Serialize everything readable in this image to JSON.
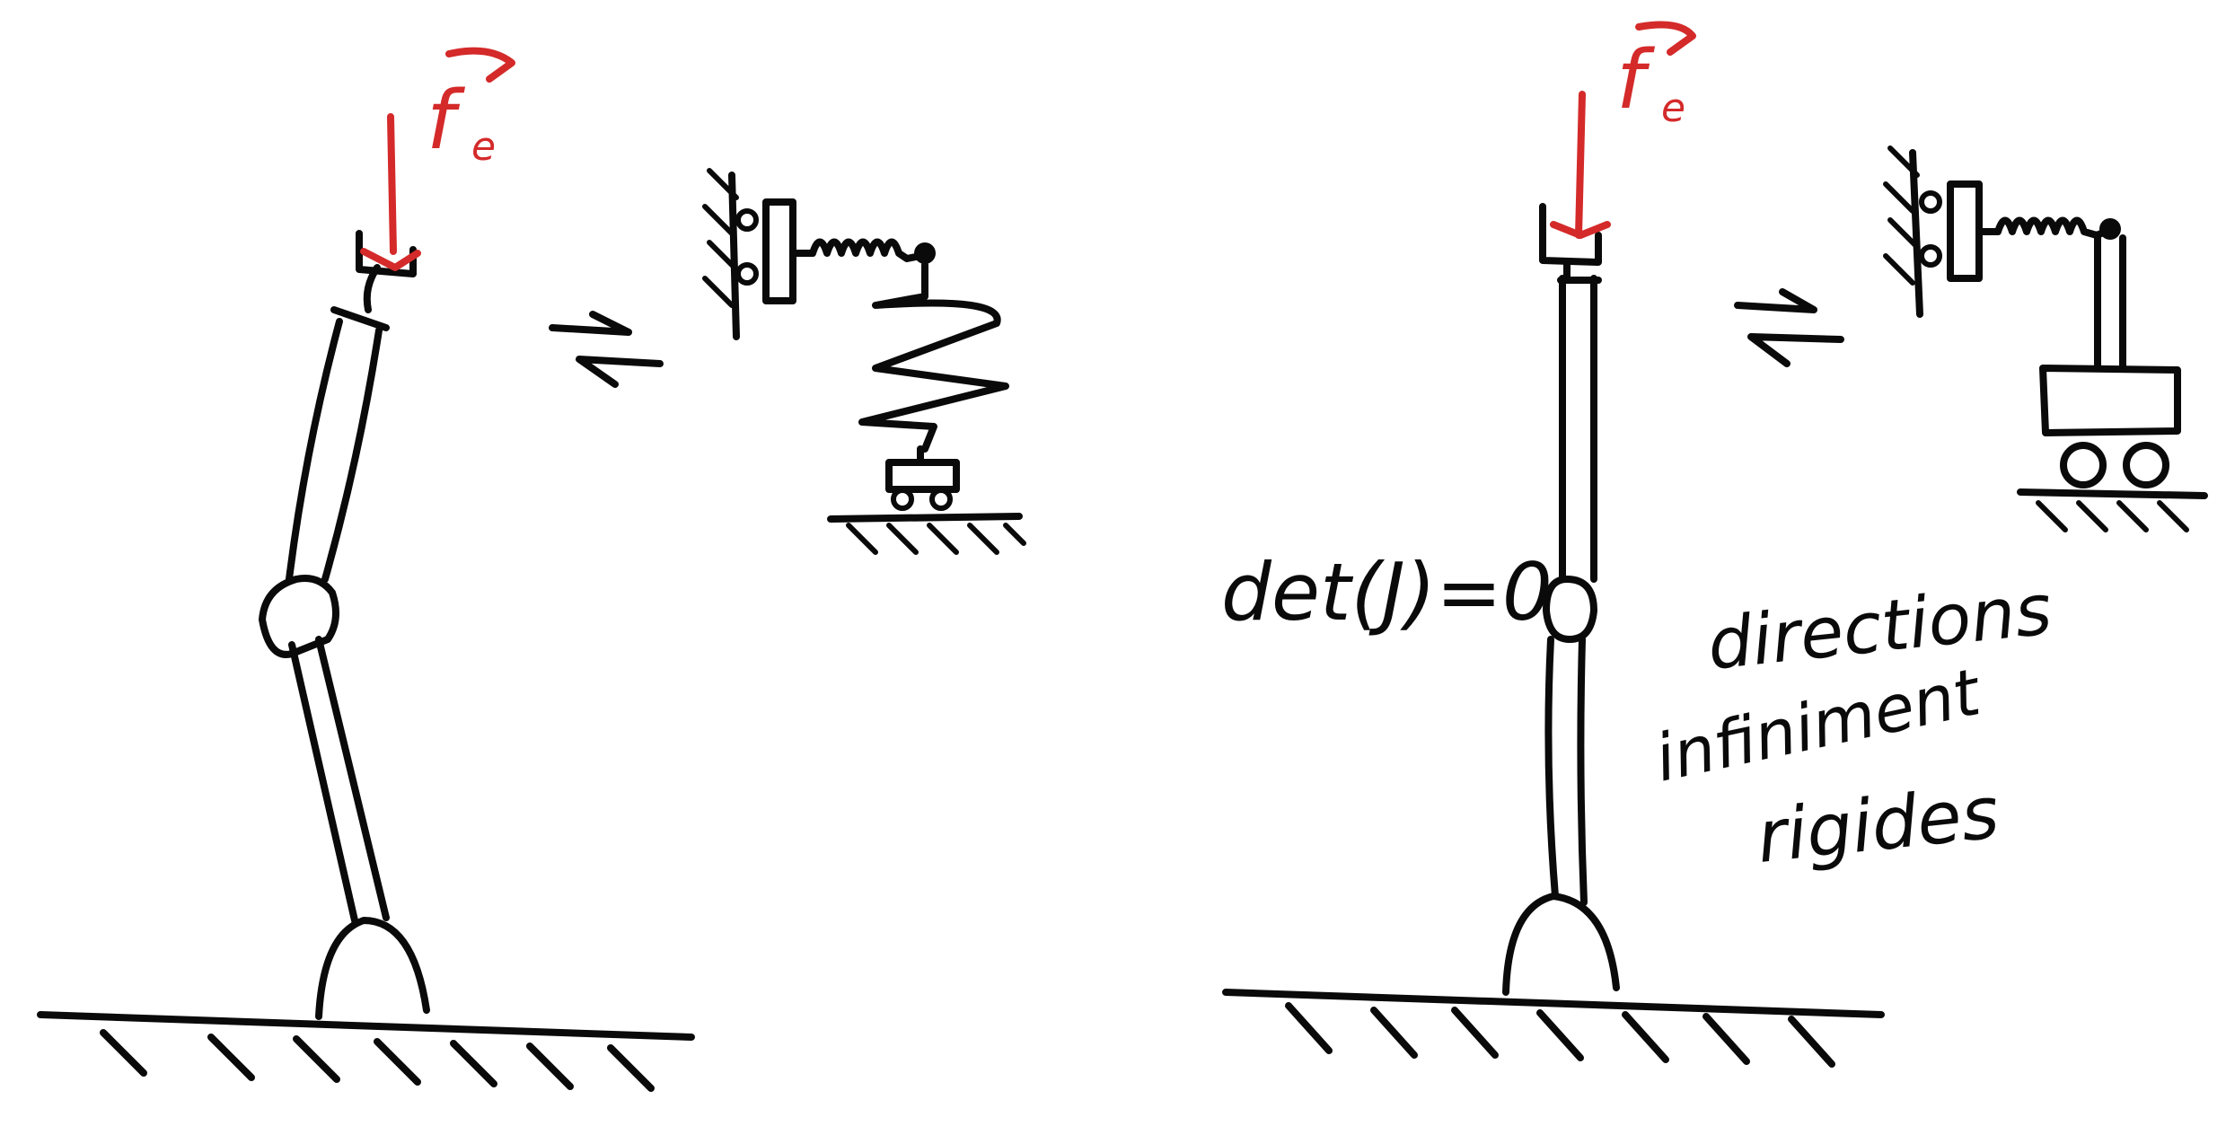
{
  "left_panel": {
    "force_label": "f",
    "force_subscript": "e"
  },
  "right_panel": {
    "force_label": "f",
    "force_subscript": "e",
    "singularity_label": "det(J)=0",
    "annotation_lines": [
      "directions",
      "infiniment",
      "rigides"
    ]
  },
  "colors": {
    "ink": "#0a0a0a",
    "force": "#d42a2a",
    "background": "#ffffff"
  }
}
